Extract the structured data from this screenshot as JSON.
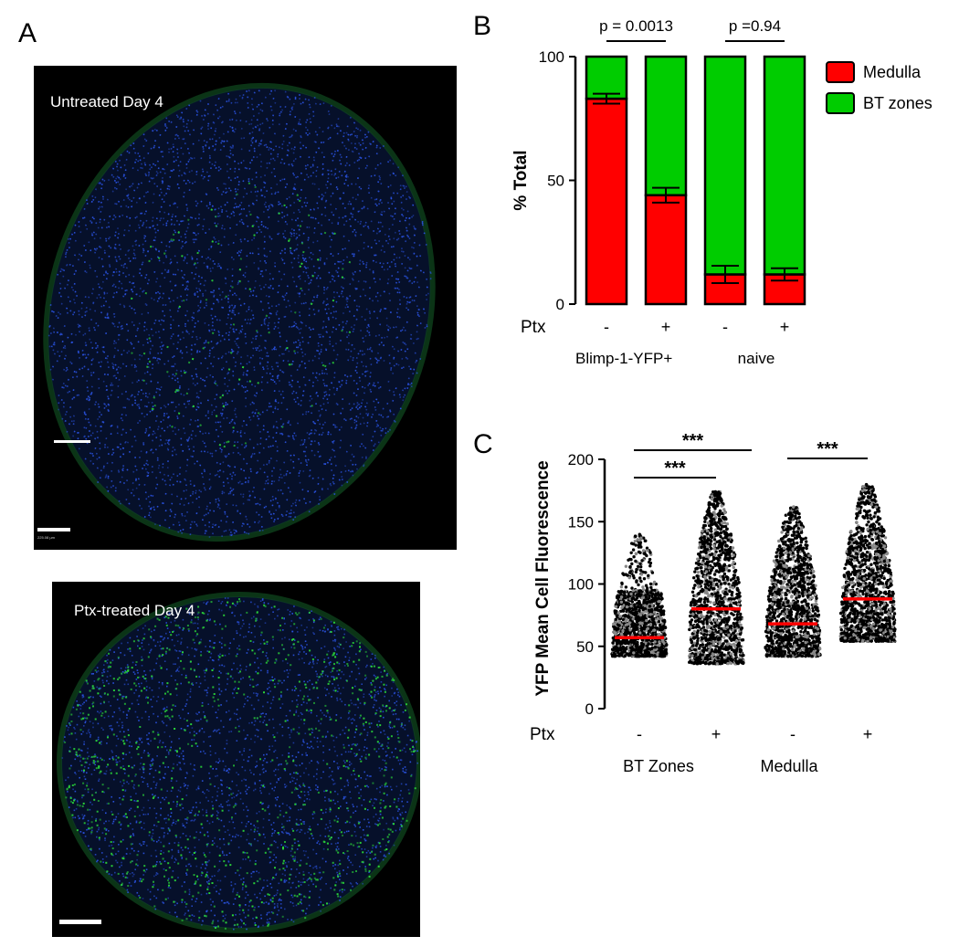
{
  "panels": {
    "a_letter": "A",
    "b_letter": "B",
    "c_letter": "C"
  },
  "micrographs": [
    {
      "label": "Untreated Day 4",
      "scale_text": "225.08 µm"
    },
    {
      "label": "Ptx-treated Day 4"
    }
  ],
  "colors": {
    "medulla": "#ff0000",
    "bt_zones": "#00cc00",
    "mean_line": "#ff0000",
    "dots": "#000000",
    "nuclei_stain": "#2a52e0",
    "yfp_stain": "#2ad63a"
  },
  "chart_data": [
    {
      "type": "bar",
      "stacked": true,
      "ylabel": "% Total",
      "ylim": [
        0,
        100
      ],
      "yticks": [
        0,
        50,
        100
      ],
      "row_label": "Ptx",
      "categories": [
        "-",
        "+",
        "-",
        "+"
      ],
      "group_labels": [
        "Blimp-1-YFP+",
        "naive"
      ],
      "series": [
        {
          "name": "Medulla",
          "values": [
            83,
            44,
            12,
            12
          ],
          "errors": [
            2,
            3,
            3.5,
            2.5
          ]
        },
        {
          "name": "BT zones",
          "values": [
            17,
            56,
            88,
            88
          ]
        }
      ],
      "legend": "right",
      "annotations": [
        {
          "text": "p = 0.0013",
          "between": [
            0,
            1
          ]
        },
        {
          "text": "p =0.94",
          "between": [
            2,
            3
          ]
        }
      ]
    },
    {
      "type": "scatter",
      "ylabel": "YFP Mean Cell Fluorescence",
      "ylim": [
        0,
        200
      ],
      "yticks": [
        0,
        50,
        100,
        150,
        200
      ],
      "row_label": "Ptx",
      "categories": [
        "-",
        "+",
        "-",
        "+"
      ],
      "group_labels": [
        "BT Zones",
        "Medulla"
      ],
      "groups": [
        {
          "mean": 57,
          "min": 42,
          "max": 140,
          "dense_top": 95
        },
        {
          "mean": 80,
          "min": 36,
          "max": 174,
          "dense_top": 145
        },
        {
          "mean": 68,
          "min": 42,
          "max": 162,
          "dense_top": 130
        },
        {
          "mean": 88,
          "min": 54,
          "max": 181,
          "dense_top": 145
        }
      ],
      "annotations": [
        {
          "text": "***",
          "between": [
            0,
            1
          ]
        },
        {
          "text": "***",
          "between": [
            0,
            2
          ]
        },
        {
          "text": "***",
          "between": [
            2,
            3
          ]
        }
      ]
    }
  ]
}
